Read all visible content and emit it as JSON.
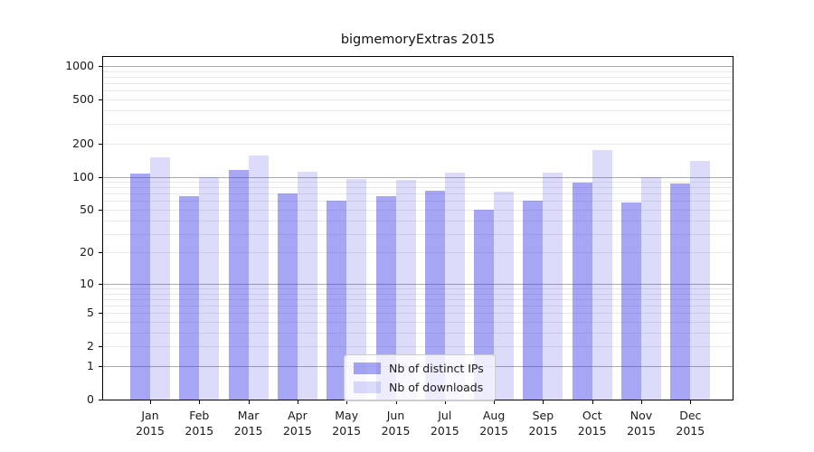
{
  "title": "bigmemoryExtras 2015",
  "legend": {
    "items": [
      {
        "label": "Nb of distinct IPs",
        "color": "rgba(62,62,230,0.46)"
      },
      {
        "label": "Nb of downloads",
        "color": "rgba(62,62,230,0.18)"
      }
    ]
  },
  "chart_data": {
    "type": "bar",
    "scale": "log1p",
    "title": "bigmemoryExtras 2015",
    "categories": [
      "Jan",
      "Feb",
      "Mar",
      "Apr",
      "May",
      "Jun",
      "Jul",
      "Aug",
      "Sep",
      "Oct",
      "Nov",
      "Dec"
    ],
    "year": "2015",
    "series": [
      {
        "name": "Nb of distinct IPs",
        "color": "rgba(62,62,230,0.46)",
        "values": [
          106,
          66,
          116,
          70,
          61,
          66,
          74,
          50,
          60,
          88,
          58,
          87
        ]
      },
      {
        "name": "Nb of downloads",
        "color": "rgba(62,62,230,0.18)",
        "values": [
          150,
          100,
          155,
          111,
          96,
          94,
          110,
          73,
          110,
          176,
          100,
          140
        ]
      }
    ],
    "y_tick_labels": [
      1000,
      500,
      200,
      100,
      50,
      20,
      10,
      5,
      2,
      1,
      0
    ],
    "major_gridlines": [
      1,
      10,
      100,
      1000
    ],
    "minor_gridlines": [
      2,
      3,
      4,
      5,
      6,
      7,
      8,
      9,
      20,
      30,
      40,
      50,
      60,
      70,
      80,
      90,
      200,
      300,
      400,
      500,
      600,
      700,
      800,
      900
    ],
    "ylim": [
      0,
      1200
    ],
    "xlabel": "",
    "ylabel": "",
    "grid": true,
    "legend_position": "lower center",
    "colors": {
      "major_grid": "#ababab",
      "minor_grid": "#e9e9e9",
      "axis": "#000000",
      "text": "#1a1a1a",
      "legend_border": "#cccccc",
      "legend_bg": "rgba(255,255,255,0.8)"
    }
  }
}
